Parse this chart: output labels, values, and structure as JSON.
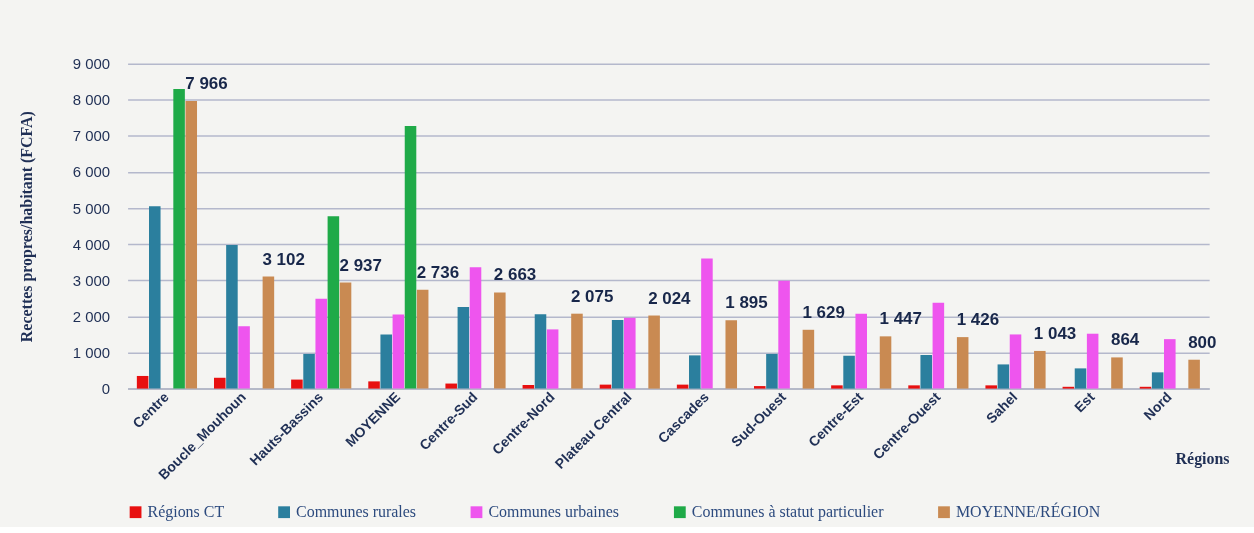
{
  "chart_data": {
    "type": "bar",
    "xlabel": "Régions",
    "ylabel": "Recettes propres/habitant (FCFA)",
    "categories": [
      "Centre",
      "Boucle_Mouhoun",
      "Hauts-Bassins",
      "MOYENNE",
      "Centre-Sud",
      "Centre-Nord",
      "Plateau Central",
      "Cascades",
      "Sud-Ouest",
      "Centre-Est",
      "Centre-Ouest",
      "Sahel",
      "Est",
      "Nord"
    ],
    "series": [
      {
        "name": "Régions CT",
        "color": "#e81010",
        "values": [
          350,
          300,
          250,
          200,
          140,
          100,
          110,
          110,
          70,
          90,
          90,
          90,
          50,
          50
        ]
      },
      {
        "name": "Communes rurales",
        "color": "#2b7f9e",
        "values": [
          5050,
          3980,
          960,
          1500,
          2260,
          2060,
          1900,
          920,
          960,
          910,
          930,
          670,
          560,
          450
        ]
      },
      {
        "name": "Communes urbaines",
        "color": "#ee55ee",
        "values": [
          null,
          1730,
          2490,
          2050,
          3360,
          1640,
          1960,
          3600,
          2990,
          2070,
          2380,
          1500,
          1520,
          1370
        ]
      },
      {
        "name": "Communes à statut particulier",
        "color": "#1faa48",
        "values": [
          8300,
          null,
          4770,
          7270,
          null,
          null,
          null,
          null,
          null,
          null,
          null,
          null,
          null,
          null
        ]
      },
      {
        "name": "MOYENNE/RÉGION",
        "color": "#c98a52",
        "values": [
          7966,
          3102,
          2937,
          2736,
          2663,
          2075,
          2024,
          1895,
          1629,
          1447,
          1426,
          1043,
          864,
          800
        ],
        "value_labels": [
          "7 966",
          "3 102",
          "2 937",
          "2 736",
          "2 663",
          "2 075",
          "2 024",
          "1 895",
          "1 629",
          "1 447",
          "1 426",
          "1 043",
          "864",
          "800"
        ]
      }
    ],
    "ylim": [
      0,
      9000
    ],
    "yticks": [
      0,
      {
        "value": 1000,
        "label": "1 000"
      },
      {
        "value": 2000,
        "label": "2 000"
      },
      {
        "value": 3000,
        "label": "3 000"
      },
      {
        "value": 4000,
        "label": "4 000"
      },
      {
        "value": 5000,
        "label": "5 000"
      },
      {
        "value": 6000,
        "label": "6 000"
      },
      {
        "value": 7000,
        "label": "7 000"
      },
      {
        "value": 8000,
        "label": "8 000"
      },
      {
        "value": 9000,
        "label": "9 000"
      }
    ],
    "grid": "y",
    "legend": "bottom"
  }
}
